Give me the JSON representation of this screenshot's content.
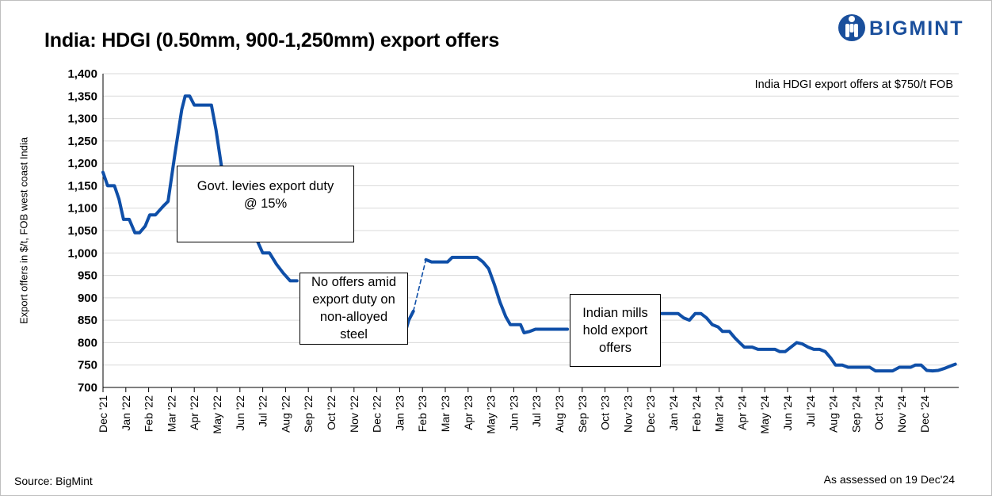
{
  "header": {
    "title": "India: HDGI (0.50mm, 900-1,250mm) export offers",
    "brand": "BIGMINT"
  },
  "colors": {
    "line": "#0f4fa8",
    "brand": "#1a4f9c",
    "grid": "#d9d9d9"
  },
  "footer": {
    "source": "Source: BigMint",
    "assessed": "As assessed on 19 Dec'24"
  },
  "chart_data": {
    "type": "line",
    "title": "India: HDGI (0.50mm, 900-1,250mm) export offers",
    "ylabel": "Export offers in $/t, FOB west coast India",
    "xlabel": "",
    "ylim": [
      700,
      1400
    ],
    "ytick_step": 50,
    "yticks": [
      "700",
      "750",
      "800",
      "850",
      "900",
      "950",
      "1,000",
      "1,050",
      "1,100",
      "1,150",
      "1,200",
      "1,250",
      "1,300",
      "1,350",
      "1,400"
    ],
    "grid": "horizontal",
    "categories": [
      "Dec '21",
      "Jan '22",
      "Feb '22",
      "Mar '22",
      "Apr '22",
      "May '22",
      "Jun '22",
      "Jul '22",
      "Aug '22",
      "Sep '22",
      "Oct '22",
      "Nov '22",
      "Dec '22",
      "Jan '23",
      "Feb '23",
      "Mar '23",
      "Apr '23",
      "May '23",
      "Jun '23",
      "Jul '23",
      "Aug '23",
      "Sep '23",
      "Oct '23",
      "Nov '23",
      "Dec '23",
      "Jan '24",
      "Feb '24",
      "Mar '24",
      "Apr '24",
      "May '24",
      "Jun '24",
      "Jul '24",
      "Aug '24",
      "Sep '24",
      "Oct '24",
      "Nov '24",
      "Dec '24"
    ],
    "x_unit": "month index (0 = Dec '21)",
    "series": [
      {
        "style": "solid",
        "points": [
          [
            0,
            1180
          ],
          [
            0.2,
            1150
          ],
          [
            0.5,
            1150
          ],
          [
            0.7,
            1120
          ],
          [
            0.9,
            1075
          ],
          [
            1.15,
            1075
          ],
          [
            1.4,
            1045
          ],
          [
            1.6,
            1045
          ],
          [
            1.85,
            1060
          ],
          [
            2.05,
            1085
          ],
          [
            2.3,
            1085
          ],
          [
            2.65,
            1105
          ],
          [
            2.85,
            1115
          ],
          [
            3.15,
            1220
          ],
          [
            3.45,
            1320
          ],
          [
            3.6,
            1350
          ],
          [
            3.8,
            1350
          ],
          [
            4.0,
            1330
          ],
          [
            4.5,
            1330
          ],
          [
            4.75,
            1330
          ],
          [
            4.95,
            1275
          ],
          [
            5.2,
            1190
          ],
          [
            5.4,
            1165
          ],
          [
            5.7,
            1120
          ],
          [
            6.1,
            1090
          ],
          [
            6.6,
            1045
          ],
          [
            7.0,
            1000
          ],
          [
            7.3,
            1000
          ],
          [
            7.6,
            975
          ],
          [
            7.9,
            955
          ],
          [
            8.2,
            938
          ],
          [
            8.5,
            938
          ]
        ]
      },
      {
        "style": "solid",
        "points": [
          [
            13.0,
            815
          ],
          [
            13.2,
            815
          ],
          [
            13.4,
            850
          ],
          [
            13.6,
            870
          ]
        ]
      },
      {
        "style": "dashed",
        "points": [
          [
            13.6,
            870
          ],
          [
            14.15,
            985
          ]
        ]
      },
      {
        "style": "solid",
        "points": [
          [
            14.15,
            985
          ],
          [
            14.4,
            980
          ],
          [
            15.1,
            980
          ],
          [
            15.3,
            990
          ],
          [
            16.4,
            990
          ],
          [
            16.65,
            980
          ],
          [
            16.9,
            965
          ],
          [
            17.15,
            930
          ],
          [
            17.4,
            890
          ],
          [
            17.65,
            858
          ],
          [
            17.85,
            840
          ],
          [
            18.3,
            840
          ],
          [
            18.45,
            822
          ],
          [
            18.7,
            825
          ],
          [
            18.95,
            830
          ],
          [
            20.1,
            830
          ],
          [
            20.35,
            830
          ]
        ]
      },
      {
        "style": "solid",
        "points": [
          [
            24.0,
            845
          ],
          [
            24.25,
            865
          ],
          [
            25.0,
            865
          ],
          [
            25.2,
            865
          ],
          [
            25.45,
            855
          ],
          [
            25.7,
            850
          ],
          [
            25.95,
            865
          ],
          [
            26.2,
            865
          ],
          [
            26.45,
            855
          ],
          [
            26.7,
            840
          ],
          [
            26.95,
            835
          ],
          [
            27.15,
            825
          ],
          [
            27.45,
            825
          ],
          [
            27.7,
            810
          ],
          [
            27.9,
            800
          ],
          [
            28.1,
            790
          ],
          [
            28.45,
            790
          ],
          [
            28.7,
            785
          ],
          [
            29.15,
            785
          ],
          [
            29.45,
            785
          ],
          [
            29.65,
            780
          ],
          [
            29.9,
            780
          ],
          [
            30.15,
            790
          ],
          [
            30.4,
            800
          ],
          [
            30.65,
            797
          ],
          [
            30.9,
            790
          ],
          [
            31.15,
            785
          ],
          [
            31.4,
            785
          ],
          [
            31.65,
            780
          ],
          [
            31.9,
            765
          ],
          [
            32.1,
            750
          ],
          [
            32.4,
            750
          ],
          [
            32.65,
            745
          ],
          [
            33.0,
            745
          ],
          [
            33.35,
            745
          ],
          [
            33.6,
            745
          ],
          [
            33.85,
            737
          ],
          [
            34.1,
            737
          ],
          [
            34.6,
            737
          ],
          [
            34.9,
            745
          ],
          [
            35.4,
            745
          ],
          [
            35.6,
            750
          ],
          [
            35.85,
            750
          ],
          [
            36.1,
            738
          ],
          [
            36.35,
            737
          ],
          [
            36.6,
            738
          ],
          [
            36.85,
            742
          ],
          [
            37.1,
            747
          ],
          [
            37.35,
            752
          ]
        ]
      }
    ],
    "annotations": [
      {
        "id": "a1",
        "text": [
          "Govt. levies export duty",
          "@ 15%"
        ]
      },
      {
        "id": "a2",
        "text": [
          "No offers amid",
          "export duty on",
          "non-alloyed",
          "steel"
        ]
      },
      {
        "id": "a3",
        "text": [
          "Indian mills",
          "hold export",
          "offers"
        ]
      },
      {
        "id": "note",
        "text": [
          "India HDGI export offers at $750/t FOB"
        ]
      }
    ]
  }
}
